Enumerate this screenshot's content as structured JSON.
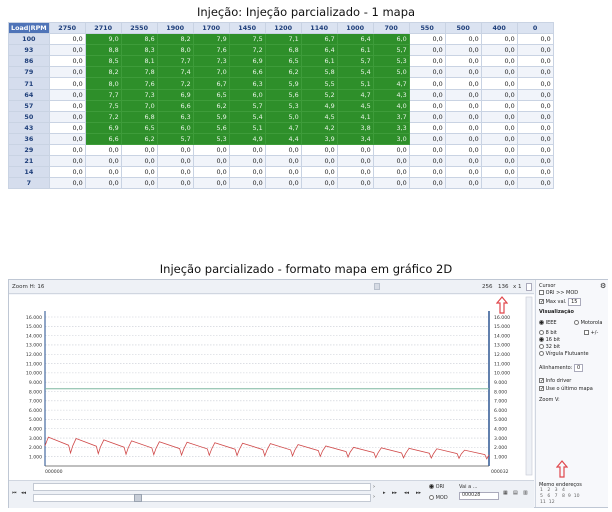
{
  "title1": "Injeção: Injeção parcializado - 1 mapa",
  "title2": "Injeção parcializado - formato mapa em gráfico 2D",
  "table": {
    "corner": "Load|RPM",
    "rpm": [
      "2750",
      "2710",
      "2550",
      "1900",
      "1700",
      "1450",
      "1200",
      "1140",
      "1000",
      "700",
      "550",
      "500",
      "400",
      "0"
    ],
    "rows": [
      {
        "load": "100",
        "vals": [
          "0,0",
          "9,0",
          "8,6",
          "8,2",
          "7,9",
          "7,5",
          "7,1",
          "6,7",
          "6,4",
          "6,0",
          "0,0",
          "0,0",
          "0,0",
          "0,0"
        ]
      },
      {
        "load": "93",
        "vals": [
          "0,0",
          "8,8",
          "8,3",
          "8,0",
          "7,6",
          "7,2",
          "6,8",
          "6,4",
          "6,1",
          "5,7",
          "0,0",
          "0,0",
          "0,0",
          "0,0"
        ]
      },
      {
        "load": "86",
        "vals": [
          "0,0",
          "8,5",
          "8,1",
          "7,7",
          "7,3",
          "6,9",
          "6,5",
          "6,1",
          "5,7",
          "5,3",
          "0,0",
          "0,0",
          "0,0",
          "0,0"
        ]
      },
      {
        "load": "79",
        "vals": [
          "0,0",
          "8,2",
          "7,8",
          "7,4",
          "7,0",
          "6,6",
          "6,2",
          "5,8",
          "5,4",
          "5,0",
          "0,0",
          "0,0",
          "0,0",
          "0,0"
        ]
      },
      {
        "load": "71",
        "vals": [
          "0,0",
          "8,0",
          "7,6",
          "7,2",
          "6,7",
          "6,3",
          "5,9",
          "5,5",
          "5,1",
          "4,7",
          "0,0",
          "0,0",
          "0,0",
          "0,0"
        ]
      },
      {
        "load": "64",
        "vals": [
          "0,0",
          "7,7",
          "7,3",
          "6,9",
          "6,5",
          "6,0",
          "5,6",
          "5,2",
          "4,7",
          "4,3",
          "0,0",
          "0,0",
          "0,0",
          "0,0"
        ]
      },
      {
        "load": "57",
        "vals": [
          "0,0",
          "7,5",
          "7,0",
          "6,6",
          "6,2",
          "5,7",
          "5,3",
          "4,9",
          "4,5",
          "4,0",
          "0,0",
          "0,0",
          "0,0",
          "0,0"
        ]
      },
      {
        "load": "50",
        "vals": [
          "0,0",
          "7,2",
          "6,8",
          "6,3",
          "5,9",
          "5,4",
          "5,0",
          "4,5",
          "4,1",
          "3,7",
          "0,0",
          "0,0",
          "0,0",
          "0,0"
        ]
      },
      {
        "load": "43",
        "vals": [
          "0,0",
          "6,9",
          "6,5",
          "6,0",
          "5,6",
          "5,1",
          "4,7",
          "4,2",
          "3,8",
          "3,3",
          "0,0",
          "0,0",
          "0,0",
          "0,0"
        ]
      },
      {
        "load": "36",
        "vals": [
          "0,0",
          "6,6",
          "6,2",
          "5,7",
          "5,3",
          "4,9",
          "4,4",
          "3,9",
          "3,4",
          "3,0",
          "0,0",
          "0,0",
          "0,0",
          "0,0"
        ]
      },
      {
        "load": "29",
        "vals": [
          "0,0",
          "0,0",
          "0,0",
          "0,0",
          "0,0",
          "0,0",
          "0,0",
          "0,0",
          "0,0",
          "0,0",
          "0,0",
          "0,0",
          "0,0",
          "0,0"
        ]
      },
      {
        "load": "21",
        "vals": [
          "0,0",
          "0,0",
          "0,0",
          "0,0",
          "0,0",
          "0,0",
          "0,0",
          "0,0",
          "0,0",
          "0,0",
          "0,0",
          "0,0",
          "0,0",
          "0,0"
        ]
      },
      {
        "load": "14",
        "vals": [
          "0,0",
          "0,0",
          "0,0",
          "0,0",
          "0,0",
          "0,0",
          "0,0",
          "0,0",
          "0,0",
          "0,0",
          "0,0",
          "0,0",
          "0,0",
          "0,0"
        ]
      },
      {
        "load": "7",
        "vals": [
          "0,0",
          "0,0",
          "0,0",
          "0,0",
          "0,0",
          "0,0",
          "0,0",
          "0,0",
          "0,0",
          "0,0",
          "0,0",
          "0,0",
          "0,0",
          "0,0"
        ]
      }
    ],
    "green_rows": 10,
    "green_cols": [
      1,
      9
    ],
    "green_color": "#2e8f2a"
  },
  "graph": {
    "zoom_h_label": "Zoom H: 16",
    "zoom_value_a": "256",
    "zoom_value_b": "136",
    "zoom_mult": "x 1",
    "left_axis_ticks": [
      "16.000",
      "15.000",
      "14.000",
      "13.000",
      "12.000",
      "11.000",
      "10.000",
      "9.000",
      "8.000",
      "7.000",
      "6.000",
      "5.000",
      "4.000",
      "3.000",
      "2.000",
      "1.000"
    ],
    "right_axis_ticks": [
      "16.000",
      "15.000",
      "14.000",
      "13.000",
      "12.000",
      "11.000",
      "10.000",
      "9.000",
      "8.000",
      "7.000",
      "6.000",
      "5.000",
      "4.000",
      "3.000",
      "2.000",
      "1.000"
    ],
    "x_start_label": "000000",
    "x_end_label": "000032",
    "goto_label": "Vai a ...",
    "goto_value": "000028",
    "ori_label": "ORI",
    "mod_label": "MOD",
    "line_color": "#d04a4a",
    "ref_line_color": "#7fb7a0"
  },
  "chart_data": {
    "type": "line",
    "title": "Injeção parcializado - formato mapa em gráfico 2D",
    "xlabel": "",
    "ylabel": "",
    "ylim": [
      0,
      16000
    ],
    "x_range": [
      "000000",
      "000032"
    ],
    "series": [
      {
        "values": [
          3100,
          2950,
          2800,
          2700,
          2600,
          2550,
          2500,
          2450,
          2400,
          2300,
          2150,
          2000,
          1950,
          1900,
          1850,
          1700
        ]
      }
    ],
    "reference_line": 8300,
    "grid": true
  },
  "side": {
    "cursor_label": "Cursor",
    "ori_mod_label": "ORI >> MOD",
    "maxval_label": "Max val.",
    "maxval_value": "15",
    "visual_label": "Visualização",
    "ieee_label": "IEEE",
    "motorola_label": "Motorola",
    "bit8_label": "8 bit",
    "plusminus_label": "+/-",
    "bit16_label": "16 bit",
    "bit32_label": "32 bit",
    "virgula_label": "Vírgula Flutuante",
    "align_label": "Alinhamento:",
    "align_value": "0",
    "info_driver_label": "Info driver",
    "use_last_label": "Use o último mapa",
    "zoom_v_label": "Zoom V:",
    "memo_label": "Memo endereços",
    "memo_nums": [
      "1",
      "2",
      "3",
      "4",
      "5",
      "6",
      "7",
      "8",
      "9",
      "10",
      "11",
      "12"
    ]
  }
}
